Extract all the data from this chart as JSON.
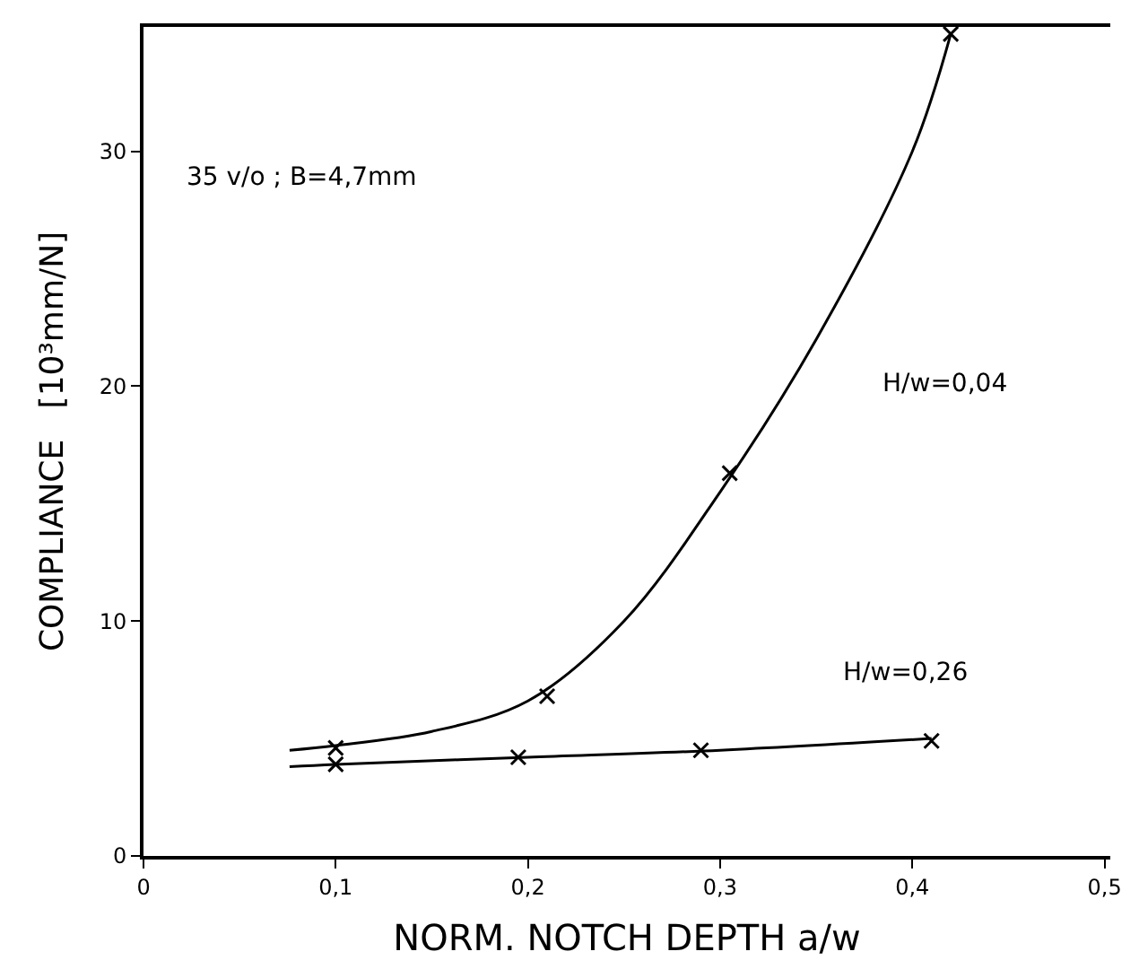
{
  "chart_data": {
    "type": "scatter",
    "xlabel": "NORM. NOTCH DEPTH a/w",
    "ylabel": "COMPLIANCE   [10³mm/N]",
    "xlim": [
      0,
      0.503
    ],
    "ylim": [
      0,
      35.3
    ],
    "xticks": [
      {
        "value": 0,
        "label": "0"
      },
      {
        "value": 0.1,
        "label": "0,1"
      },
      {
        "value": 0.2,
        "label": "0,2"
      },
      {
        "value": 0.3,
        "label": "0,3"
      },
      {
        "value": 0.4,
        "label": "0,4"
      },
      {
        "value": 0.5,
        "label": "0,5"
      }
    ],
    "yticks": [
      0,
      10,
      20,
      30
    ],
    "series": [
      {
        "type": "line",
        "color": "#000000",
        "marker": "none",
        "x": [
          0.076,
          0.1,
          0.15,
          0.2,
          0.25,
          0.3,
          0.35,
          0.4,
          0.42
        ],
        "values": [
          4.5,
          4.7,
          5.3,
          6.6,
          10,
          15.5,
          22,
          30,
          35
        ]
      },
      {
        "color": "#000000",
        "marker": "cross",
        "x": [
          0.1,
          0.21,
          0.305,
          0.42
        ],
        "values": [
          4.6,
          6.8,
          16.3,
          35
        ]
      },
      {
        "type": "line",
        "color": "#000000",
        "marker": "none",
        "x": [
          0.076,
          0.1,
          0.2,
          0.3,
          0.41
        ],
        "values": [
          3.8,
          3.9,
          4.2,
          4.5,
          5.0
        ]
      },
      {
        "color": "#000000",
        "marker": "cross",
        "x": [
          0.1,
          0.195,
          0.29,
          0.41
        ],
        "values": [
          3.9,
          4.2,
          4.5,
          4.9
        ]
      }
    ],
    "annotations": [
      "35 v/o ; B=4,7mm",
      "H/w=0,04",
      "H/w=0,26"
    ]
  }
}
